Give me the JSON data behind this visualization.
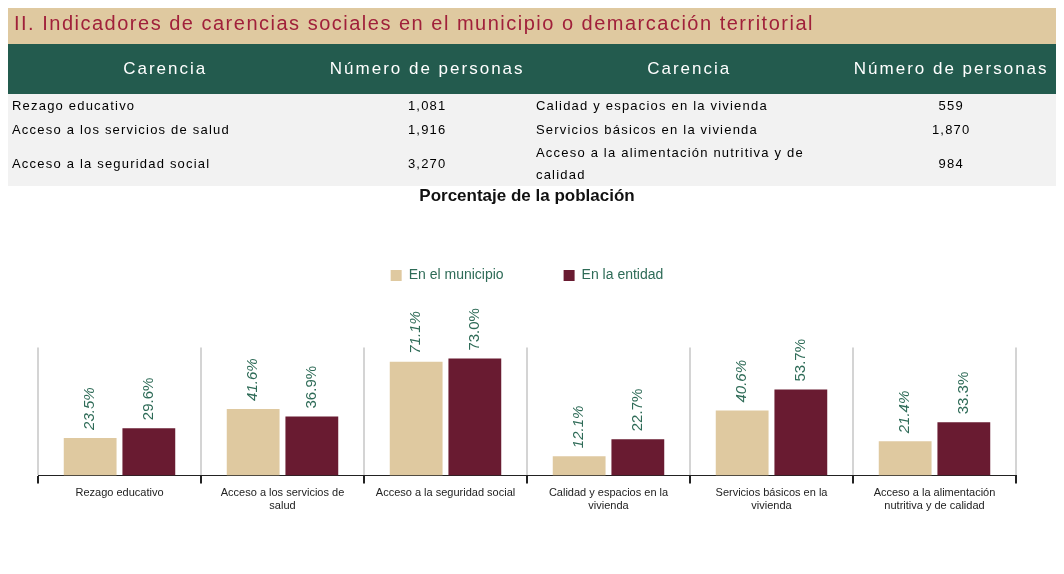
{
  "chart_data": [
    {
      "type": "other",
      "title": "II. Indicadores de carencias sociales en el municipio o demarcación territorial",
      "annotations": [
        "Carencia",
        "Número de personas",
        "Carencia",
        "Número de personas",
        "Rezago educativo",
        "1,081",
        "Calidad y espacios en la vivienda",
        "559",
        "Acceso a los servicios de salud",
        "1,916",
        "Servicios básicos en la vivienda",
        "1,870",
        "Acceso a la seguridad social",
        "3,270",
        "Acceso a la alimentación nutritiva y de calidad",
        "984"
      ]
    },
    {
      "type": "bar",
      "title": "Porcentaje de la población",
      "categories": [
        "Rezago educativo",
        "Acceso a los servicios de salud",
        "Acceso a la seguridad social",
        "Calidad y espacios en la vivienda",
        "Servicios básicos en la vivienda",
        "Acceso a la alimentación nutritiva y de calidad"
      ],
      "series": [
        {
          "name": "En el municipio",
          "color": "#dfc9a0",
          "values": [
            23.5,
            41.6,
            71.1,
            12.1,
            40.6,
            21.4
          ],
          "value_labels": [
            "23.5%",
            "41.6%",
            "71.1%",
            "12.1%",
            "40.6%",
            "21.4%"
          ]
        },
        {
          "name": "En la entidad",
          "color": "#691b31",
          "values": [
            29.6,
            36.9,
            73.0,
            22.7,
            53.7,
            33.3
          ],
          "value_labels": [
            "29.6%",
            "36.9%",
            "73.0%",
            "22.7%",
            "53.7%",
            "33.3%"
          ]
        }
      ],
      "ylim": [
        0,
        80
      ],
      "tick_labels": "x",
      "grid": "x",
      "legend": "top"
    }
  ]
}
